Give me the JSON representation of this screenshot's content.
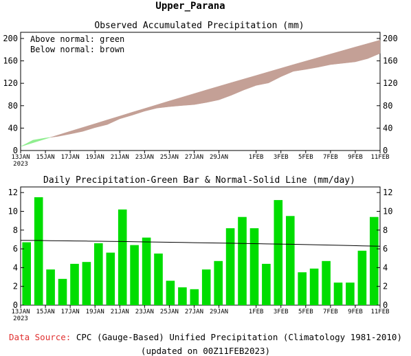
{
  "page_title": "Upper_Parana",
  "footer": {
    "source_label": "Data Source:",
    "source_text": "CPC (Gauge-Based) Unified Precipitation (Climatology 1981-2010)",
    "updated": "(updated on 00Z11FEB2023)"
  },
  "colors": {
    "above_normal": "#90ee90",
    "below_normal": "#c4a096",
    "daily_bar": "#00dd00",
    "normal_line": "#000000",
    "source_label": "#e03030"
  },
  "chart_data": [
    {
      "type": "area",
      "title": "Observed Accumulated Precipitation (mm)",
      "legend": [
        "Above normal: green",
        "Below normal: brown"
      ],
      "legend_placement": "top-left",
      "x_ticks": [
        {
          "day": 0,
          "label": "13JAN",
          "sub": "2023"
        },
        {
          "day": 2,
          "label": "15JAN"
        },
        {
          "day": 4,
          "label": "17JAN"
        },
        {
          "day": 6,
          "label": "19JAN"
        },
        {
          "day": 8,
          "label": "21JAN"
        },
        {
          "day": 10,
          "label": "23JAN"
        },
        {
          "day": 12,
          "label": "25JAN"
        },
        {
          "day": 14,
          "label": "27JAN"
        },
        {
          "day": 16,
          "label": "29JAN"
        },
        {
          "day": 19,
          "label": "1FEB"
        },
        {
          "day": 21,
          "label": "3FEB"
        },
        {
          "day": 23,
          "label": "5FEB"
        },
        {
          "day": 25,
          "label": "7FEB"
        },
        {
          "day": 27,
          "label": "9FEB"
        },
        {
          "day": 29,
          "label": "11FEB"
        }
      ],
      "y_ticks": [
        0,
        40,
        80,
        120,
        160,
        200
      ],
      "ylim": [
        0,
        211
      ],
      "xlim": [
        0,
        29
      ],
      "days": [
        0,
        1,
        2,
        3,
        4,
        5,
        6,
        7,
        8,
        9,
        10,
        11,
        12,
        13,
        14,
        15,
        16,
        17,
        18,
        19,
        20,
        21,
        22,
        23,
        24,
        25,
        26,
        27,
        28,
        29
      ],
      "normal": [
        7,
        13.9,
        20.7,
        27.5,
        34.3,
        41.1,
        47.9,
        54.7,
        61.5,
        68.3,
        75.0,
        81.7,
        88.4,
        95.0,
        101.6,
        108.2,
        114.7,
        121.2,
        127.6,
        134.0,
        140.5,
        146.9,
        153.3,
        159.6,
        165.9,
        172.2,
        178.5,
        184.7,
        190.9,
        197.1
      ],
      "observed": [
        7,
        18.5,
        22.3,
        25.1,
        29.5,
        34.1,
        40.8,
        46.4,
        56.6,
        63.0,
        70.2,
        75.7,
        78.3,
        80.2,
        81.9,
        85.7,
        90.4,
        98.6,
        108.0,
        116.2,
        120.6,
        131.8,
        141.3,
        144.8,
        148.7,
        153.4,
        155.8,
        158.2,
        164.0,
        173.4
      ]
    },
    {
      "type": "bar",
      "title": "Daily Precipitation-Green Bar & Normal-Solid Line (mm/day)",
      "y_ticks": [
        0,
        2,
        4,
        6,
        8,
        10,
        12
      ],
      "ylim": [
        0,
        12.6
      ],
      "series": [
        {
          "name": "Daily Precipitation",
          "values": [
            6.7,
            11.5,
            3.8,
            2.8,
            4.4,
            4.6,
            6.6,
            5.6,
            10.2,
            6.4,
            7.2,
            5.5,
            2.6,
            1.9,
            1.7,
            3.8,
            4.7,
            8.2,
            9.4,
            8.2,
            4.4,
            11.2,
            9.5,
            3.5,
            3.9,
            4.7,
            2.4,
            2.4,
            5.8,
            9.4
          ]
        },
        {
          "name": "Normal",
          "values": [
            6.9,
            6.89,
            6.87,
            6.86,
            6.84,
            6.83,
            6.81,
            6.79,
            6.78,
            6.76,
            6.74,
            6.72,
            6.7,
            6.68,
            6.66,
            6.64,
            6.62,
            6.6,
            6.58,
            6.56,
            6.53,
            6.51,
            6.49,
            6.46,
            6.44,
            6.41,
            6.38,
            6.35,
            6.32,
            6.28
          ]
        }
      ]
    }
  ]
}
